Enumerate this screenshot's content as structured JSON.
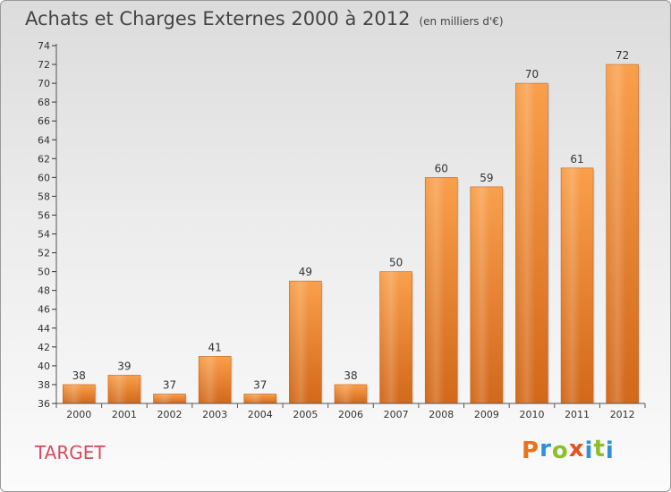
{
  "header": {
    "title": "Achats et Charges Externes 2000 à 2012",
    "subtitle": "(en milliers d'€)"
  },
  "footer": {
    "commune": "TARGET",
    "logo_letters": [
      "P",
      "r",
      "o",
      "x",
      "i",
      "t",
      "i"
    ],
    "logo_colors": [
      "#e8731c",
      "#2f8fd8",
      "#8cbf2a",
      "#e8501c",
      "#2f8fd8",
      "#8cbf2a",
      "#2f8fd8"
    ]
  },
  "colors": {
    "bar_light": "#f9a04c",
    "bar_dark": "#d2681a",
    "axis": "#555555",
    "grid_tick": "#333333"
  },
  "chart_data": {
    "type": "bar",
    "title": "Achats et Charges Externes 2000 à 2012",
    "subtitle": "(en milliers d'€)",
    "categories": [
      "2000",
      "2001",
      "2002",
      "2003",
      "2004",
      "2005",
      "2006",
      "2007",
      "2008",
      "2009",
      "2010",
      "2011",
      "2012"
    ],
    "values": [
      38,
      39,
      37,
      41,
      37,
      49,
      38,
      50,
      60,
      59,
      70,
      61,
      72
    ],
    "ylim": [
      36,
      74
    ],
    "yticks": [
      36,
      38,
      40,
      42,
      44,
      46,
      48,
      50,
      52,
      54,
      56,
      58,
      60,
      62,
      64,
      66,
      68,
      70,
      72,
      74
    ],
    "xlabel": "",
    "ylabel": "",
    "grid": false,
    "data_labels": true
  }
}
